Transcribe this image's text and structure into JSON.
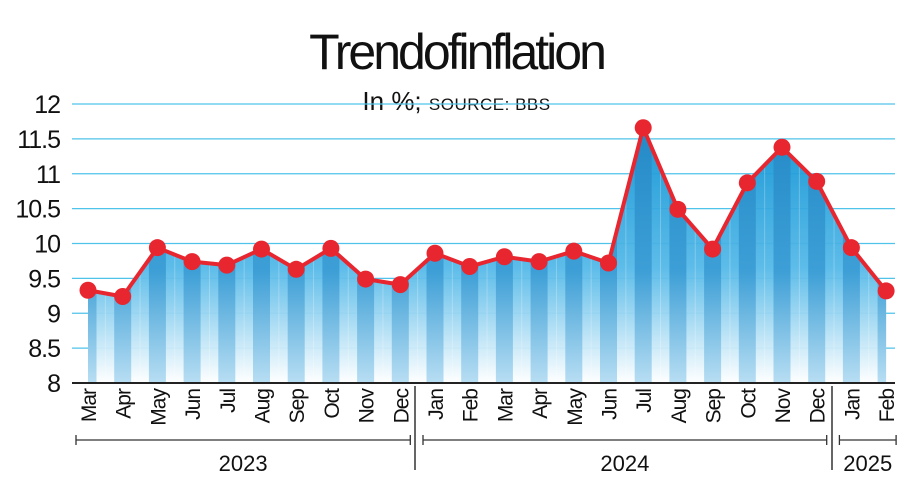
{
  "chart_data": {
    "type": "area",
    "title": "Trendofinflation",
    "subtitle_main": "In %;",
    "subtitle_source": "SOURCE: BBS",
    "ylim": [
      8,
      12
    ],
    "y_ticks": [
      "8",
      "8.5",
      "9",
      "9.5",
      "10",
      "10.5",
      "11",
      "11.5",
      "12"
    ],
    "categories": [
      "Mar",
      "Apr",
      "May",
      "Jun",
      "Jul",
      "Aug",
      "Sep",
      "Oct",
      "Nov",
      "Dec",
      "Jan",
      "Feb",
      "Mar",
      "Apr",
      "May",
      "Jun",
      "Jul",
      "Aug",
      "Sep",
      "Oct",
      "Nov",
      "Dec",
      "Jan",
      "Feb"
    ],
    "values": [
      9.33,
      9.24,
      9.94,
      9.74,
      9.69,
      9.92,
      9.63,
      9.93,
      9.49,
      9.41,
      9.86,
      9.67,
      9.81,
      9.74,
      9.89,
      9.72,
      11.66,
      10.49,
      9.92,
      10.87,
      11.38,
      10.89,
      9.94,
      9.32
    ],
    "year_groups": [
      {
        "label": "2023",
        "start": 0,
        "end": 9
      },
      {
        "label": "2024",
        "start": 10,
        "end": 21
      },
      {
        "label": "2025",
        "start": 22,
        "end": 23
      }
    ],
    "grid": true,
    "colors": {
      "line": "#e8262f",
      "marker": "#e8262f",
      "grid": "#4fc3ea",
      "area_top": "#1a9ad6",
      "area_bottom": "#ffffff",
      "bar": "#2a8fcb"
    }
  }
}
